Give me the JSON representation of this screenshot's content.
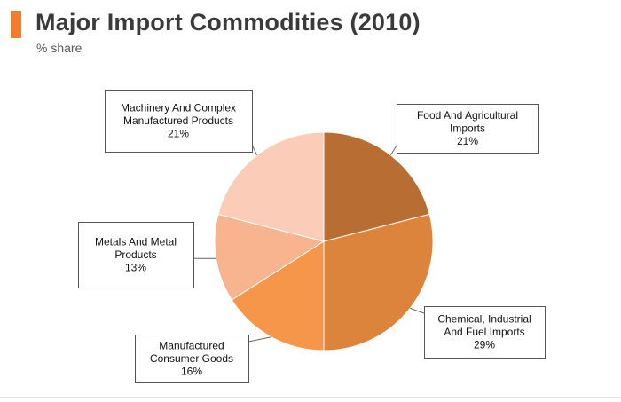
{
  "header": {
    "title": "Major Import Commodities (2010)",
    "subtitle": "% share"
  },
  "colors": {
    "accent": "#f47c2a"
  },
  "chart_data": {
    "type": "pie",
    "title": "Major Import Commodities (2010)",
    "subtitle": "% share",
    "legend": "none",
    "slices": [
      {
        "label_lines": [
          "Food And Agricultural",
          "Imports"
        ],
        "value_label": "21%",
        "value": 21,
        "color": "#b86e32"
      },
      {
        "label_lines": [
          "Chemical, Industrial",
          "And Fuel Imports"
        ],
        "value_label": "29%",
        "value": 29,
        "color": "#dd843c"
      },
      {
        "label_lines": [
          "Manufactured",
          "Consumer Goods"
        ],
        "value_label": "16%",
        "value": 16,
        "color": "#f6964a"
      },
      {
        "label_lines": [
          "Metals And Metal",
          "Products"
        ],
        "value_label": "13%",
        "value": 13,
        "color": "#f7b48e"
      },
      {
        "label_lines": [
          "Machinery And Complex",
          "Manufactured Products"
        ],
        "value_label": "21%",
        "value": 21,
        "color": "#fbcdb8"
      }
    ]
  }
}
